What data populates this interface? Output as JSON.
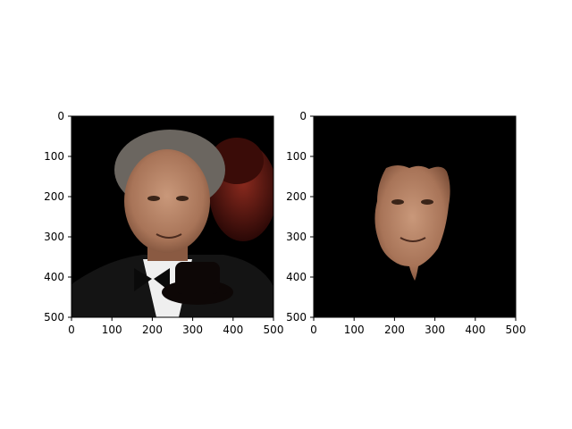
{
  "figure": {
    "background": "#ffffff",
    "panels": [
      {
        "id": "left",
        "content": "original portrait with dark occluding hat shape",
        "xticks": [
          "0",
          "100",
          "200",
          "300",
          "400",
          "500"
        ],
        "yticks": [
          "0",
          "100",
          "200",
          "300",
          "400",
          "500"
        ],
        "xlim": [
          0,
          500
        ],
        "ylim": [
          500,
          0
        ]
      },
      {
        "id": "right",
        "content": "segmented face on black background",
        "xticks": [
          "0",
          "100",
          "200",
          "300",
          "400",
          "500"
        ],
        "yticks": [
          "0",
          "100",
          "200",
          "300",
          "400",
          "500"
        ],
        "xlim": [
          0,
          500
        ],
        "ylim": [
          500,
          0
        ]
      }
    ]
  },
  "colors": {
    "image_background": "#000000",
    "hat": "#0d0706",
    "skin": "#b58466",
    "skin_dark": "#7a4e38",
    "hair": "#6b6660",
    "suit": "#141414",
    "shirt": "#f2f2f2",
    "red_figure": "#5a1410"
  }
}
